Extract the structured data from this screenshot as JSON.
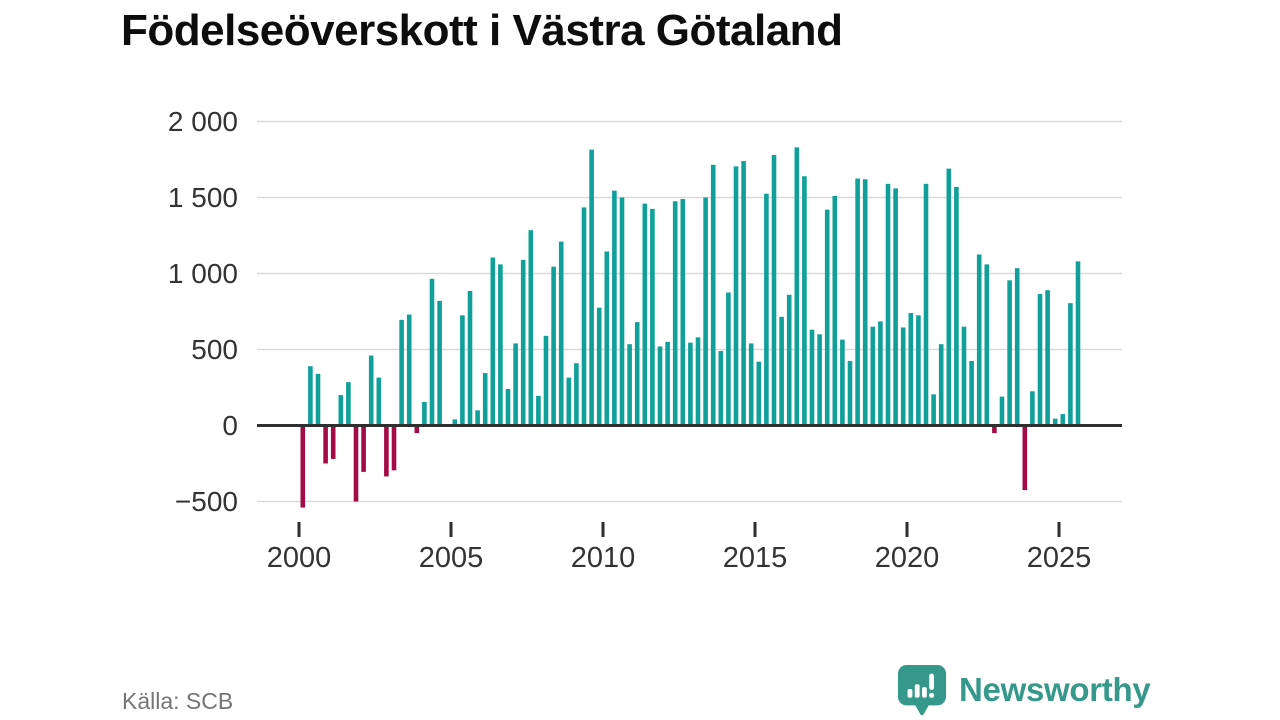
{
  "page": {
    "title": "Födelseöverskott i Västra Götaland",
    "source": "Källa: SCB",
    "brand": "Newsworthy"
  },
  "chart_data": {
    "type": "bar",
    "title": "Födelseöverskott i Västra Götaland",
    "frequency": "quarterly",
    "series_start": {
      "year": 2000,
      "quarter": 1
    },
    "values": [
      -540,
      390,
      340,
      -250,
      -220,
      200,
      285,
      -500,
      -305,
      460,
      315,
      -335,
      -295,
      695,
      730,
      -50,
      155,
      965,
      820,
      10,
      40,
      725,
      885,
      100,
      345,
      1105,
      1060,
      240,
      540,
      1090,
      1285,
      195,
      590,
      1045,
      1210,
      315,
      410,
      1435,
      1815,
      775,
      1145,
      1545,
      1500,
      535,
      680,
      1460,
      1425,
      520,
      550,
      1475,
      1490,
      545,
      580,
      1500,
      1715,
      490,
      875,
      1705,
      1740,
      540,
      420,
      1525,
      1780,
      715,
      860,
      1830,
      1640,
      630,
      600,
      1420,
      1510,
      565,
      425,
      1625,
      1620,
      650,
      685,
      1590,
      1560,
      645,
      740,
      725,
      1590,
      205,
      535,
      1690,
      1570,
      650,
      425,
      1125,
      1060,
      -50,
      190,
      955,
      1035,
      -425,
      225,
      865,
      890,
      45,
      75,
      805,
      1080
    ],
    "y_axis": {
      "ticks": [
        {
          "label": "2 000",
          "value": 2000
        },
        {
          "label": "1 500",
          "value": 1500
        },
        {
          "label": "1 000",
          "value": 1000
        },
        {
          "label": "500",
          "value": 500
        },
        {
          "label": "0",
          "value": 0
        },
        {
          "label": "−500",
          "value": -500
        }
      ],
      "ylim": [
        -650,
        2050
      ]
    },
    "x_axis": {
      "ticks": [
        {
          "label": "2000",
          "year": 2000
        },
        {
          "label": "2005",
          "year": 2005
        },
        {
          "label": "2010",
          "year": 2010
        },
        {
          "label": "2015",
          "year": 2015
        },
        {
          "label": "2020",
          "year": 2020
        },
        {
          "label": "2025",
          "year": 2025
        }
      ]
    },
    "grid": true,
    "legend": "none",
    "colors": {
      "positive": "#10a099",
      "negative": "#a30b45",
      "gridline": "#d9d9d9",
      "axis": "#2f2f2f",
      "tick_label": "#333333"
    }
  }
}
